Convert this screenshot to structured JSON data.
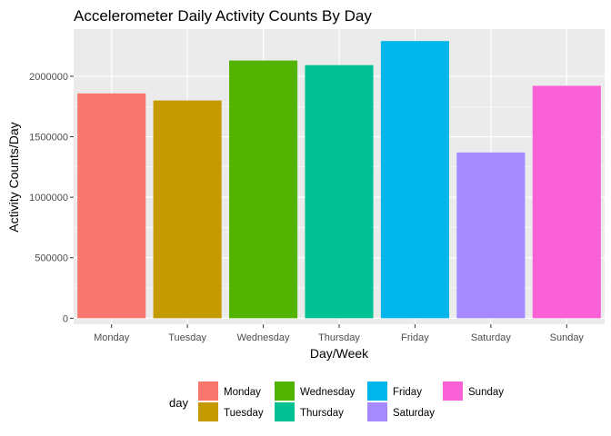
{
  "chart_data": {
    "type": "bar",
    "title": "Accelerometer Daily Activity Counts By Day",
    "xlabel": "Day/Week",
    "ylabel": "Activity Counts/Day",
    "categories": [
      "Monday",
      "Tuesday",
      "Wednesday",
      "Thursday",
      "Friday",
      "Saturday",
      "Sunday"
    ],
    "values": [
      1858000,
      1800000,
      2130000,
      2092000,
      2291000,
      1370000,
      1921000
    ],
    "colors": [
      "#F8766D",
      "#C49A00",
      "#53B400",
      "#00C094",
      "#00B6EB",
      "#A58AFF",
      "#FB61D7"
    ],
    "ylim": [
      -50000,
      2390000
    ],
    "yticks": [
      0,
      500000,
      1000000,
      1500000,
      2000000
    ],
    "ytick_labels": [
      "0",
      "500000",
      "1000000",
      "1500000",
      "2000000"
    ],
    "grid": true,
    "legend": {
      "title": "day",
      "position": "bottom",
      "entries": [
        "Monday",
        "Tuesday",
        "Wednesday",
        "Thursday",
        "Friday",
        "Saturday",
        "Sunday"
      ]
    },
    "panel_background": "#EBEBEB",
    "grid_color": "#FFFFFF"
  }
}
